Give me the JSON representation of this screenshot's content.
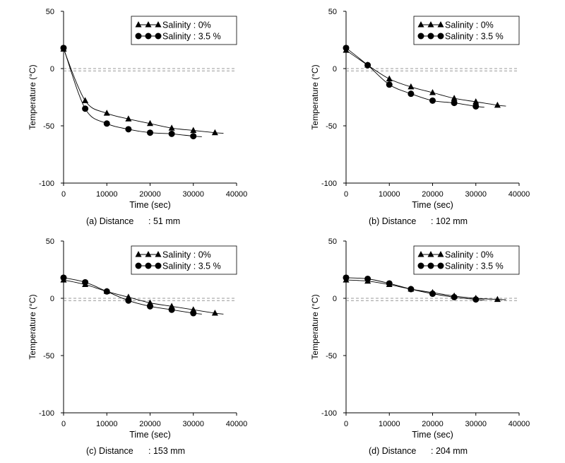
{
  "chart_data": [
    {
      "type": "line",
      "panel": "(a)",
      "caption_label": "(a) Distance",
      "caption_value": ":  51  mm",
      "xlabel": "Time (sec)",
      "ylabel": "Temperature (°C)",
      "xlim": [
        0,
        40000
      ],
      "ylim": [
        -100,
        50
      ],
      "xticks": [
        "0",
        "10000",
        "20000",
        "30000",
        "40000"
      ],
      "yticks": [
        "50",
        "0",
        "-50",
        "-100"
      ],
      "reference_line_y": [
        0,
        -2
      ],
      "legend_position": "top-right",
      "series": [
        {
          "name": "Salinity : 0%",
          "marker": "triangle",
          "x": [
            0,
            5000,
            10000,
            15000,
            20000,
            25000,
            30000,
            35000
          ],
          "y": [
            17,
            -28,
            -39,
            -44,
            -48,
            -52,
            -54,
            -56
          ]
        },
        {
          "name": "Salinity : 3.5 %",
          "marker": "circle",
          "x": [
            0,
            5000,
            10000,
            15000,
            20000,
            25000,
            30000
          ],
          "y": [
            18,
            -35,
            -48,
            -53,
            -56,
            -57,
            -59
          ]
        }
      ]
    },
    {
      "type": "line",
      "panel": "(b)",
      "caption_label": "(b) Distance",
      "caption_value": ":  102  mm",
      "xlabel": "Time (sec)",
      "ylabel": "Temperature (°C)",
      "xlim": [
        0,
        40000
      ],
      "ylim": [
        -100,
        50
      ],
      "xticks": [
        "0",
        "10000",
        "20000",
        "30000",
        "40000"
      ],
      "yticks": [
        "50",
        "0",
        "-50",
        "-100"
      ],
      "reference_line_y": [
        0,
        -2
      ],
      "legend_position": "top-right",
      "series": [
        {
          "name": "Salinity : 0%",
          "marker": "triangle",
          "x": [
            0,
            5000,
            10000,
            15000,
            20000,
            25000,
            30000,
            35000
          ],
          "y": [
            16,
            3,
            -9,
            -16,
            -21,
            -26,
            -29,
            -32
          ]
        },
        {
          "name": "Salinity : 3.5 %",
          "marker": "circle",
          "x": [
            0,
            5000,
            10000,
            15000,
            20000,
            25000,
            30000
          ],
          "y": [
            18,
            3,
            -14,
            -22,
            -28,
            -30,
            -33
          ]
        }
      ]
    },
    {
      "type": "line",
      "panel": "(c)",
      "caption_label": "(c) Distance",
      "caption_value": ":  153  mm",
      "xlabel": "Time (sec)",
      "ylabel": "Temperature (°C)",
      "xlim": [
        0,
        40000
      ],
      "ylim": [
        -100,
        50
      ],
      "xticks": [
        "0",
        "10000",
        "20000",
        "30000",
        "40000"
      ],
      "yticks": [
        "50",
        "0",
        "-50",
        "-100"
      ],
      "reference_line_y": [
        0,
        -2
      ],
      "legend_position": "top-right",
      "series": [
        {
          "name": "Salinity : 0%",
          "marker": "triangle",
          "x": [
            0,
            5000,
            10000,
            15000,
            20000,
            25000,
            30000,
            35000
          ],
          "y": [
            16,
            12,
            6,
            1,
            -4,
            -7,
            -10,
            -13
          ]
        },
        {
          "name": "Salinity : 3.5 %",
          "marker": "circle",
          "x": [
            0,
            5000,
            10000,
            15000,
            20000,
            25000,
            30000
          ],
          "y": [
            18,
            14,
            6,
            -2,
            -7,
            -10,
            -13
          ]
        }
      ]
    },
    {
      "type": "line",
      "panel": "(d)",
      "caption_label": "(d) Distance",
      "caption_value": ":  204  mm",
      "xlabel": "Time (sec)",
      "ylabel": "Temperature (°C)",
      "xlim": [
        0,
        40000
      ],
      "ylim": [
        -100,
        50
      ],
      "xticks": [
        "0",
        "10000",
        "20000",
        "30000",
        "40000"
      ],
      "yticks": [
        "50",
        "0",
        "-50",
        "-100"
      ],
      "reference_line_y": [
        0,
        -2
      ],
      "legend_position": "top-right",
      "series": [
        {
          "name": "Salinity : 0%",
          "marker": "triangle",
          "x": [
            0,
            5000,
            10000,
            15000,
            20000,
            25000,
            30000,
            35000
          ],
          "y": [
            16,
            15,
            12,
            8,
            5,
            2,
            0,
            -1
          ]
        },
        {
          "name": "Salinity : 3.5 %",
          "marker": "circle",
          "x": [
            0,
            5000,
            10000,
            15000,
            20000,
            25000,
            30000
          ],
          "y": [
            18,
            17,
            13,
            8,
            4,
            1,
            -1
          ]
        }
      ]
    }
  ]
}
